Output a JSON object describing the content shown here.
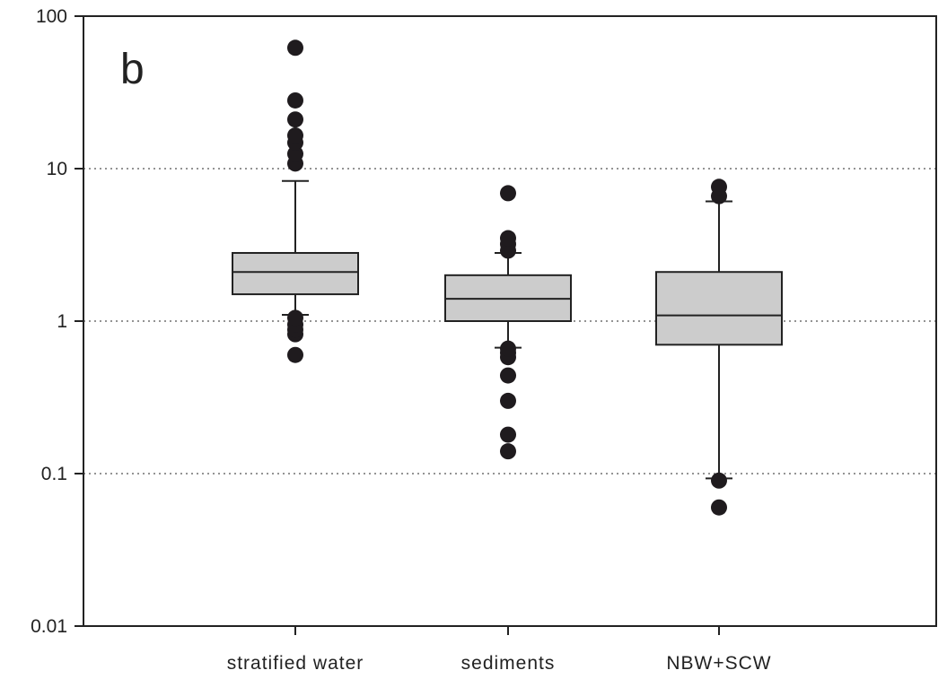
{
  "chart_data": {
    "type": "box",
    "panel_label": "b",
    "y_scale": "log",
    "ylim": [
      0.01,
      100
    ],
    "yticks": [
      0.01,
      0.1,
      1,
      10,
      100
    ],
    "ytick_labels": [
      "0.01",
      "0.1",
      "1",
      "10",
      "100"
    ],
    "grid": "horizontal dotted at 0.1, 1, 10",
    "categories": [
      "stratified water",
      "sediments",
      "NBW+SCW"
    ],
    "boxes": [
      {
        "category": "stratified water",
        "whisker_low": 1.1,
        "q1": 1.5,
        "median": 2.1,
        "q3": 2.8,
        "whisker_high": 8.3,
        "outliers": [
          0.6,
          0.82,
          0.88,
          0.95,
          1.05,
          10.8,
          12.5,
          14.8,
          16.5,
          21,
          28,
          62
        ]
      },
      {
        "category": "sediments",
        "whisker_low": 0.67,
        "q1": 1.0,
        "median": 1.4,
        "q3": 2.0,
        "whisker_high": 2.8,
        "outliers": [
          0.14,
          0.18,
          0.3,
          0.44,
          0.58,
          0.62,
          0.66,
          2.9,
          3.2,
          3.5,
          6.9
        ]
      },
      {
        "category": "NBW+SCW",
        "whisker_low": 0.093,
        "q1": 0.7,
        "median": 1.09,
        "q3": 2.1,
        "whisker_high": 6.1,
        "outliers": [
          0.06,
          0.09,
          6.6,
          7.6
        ]
      }
    ],
    "colors": {
      "box_fill": "#cccccc",
      "stroke": "#222222",
      "outlier": "#1f1b1e",
      "grid": "#555555"
    }
  }
}
